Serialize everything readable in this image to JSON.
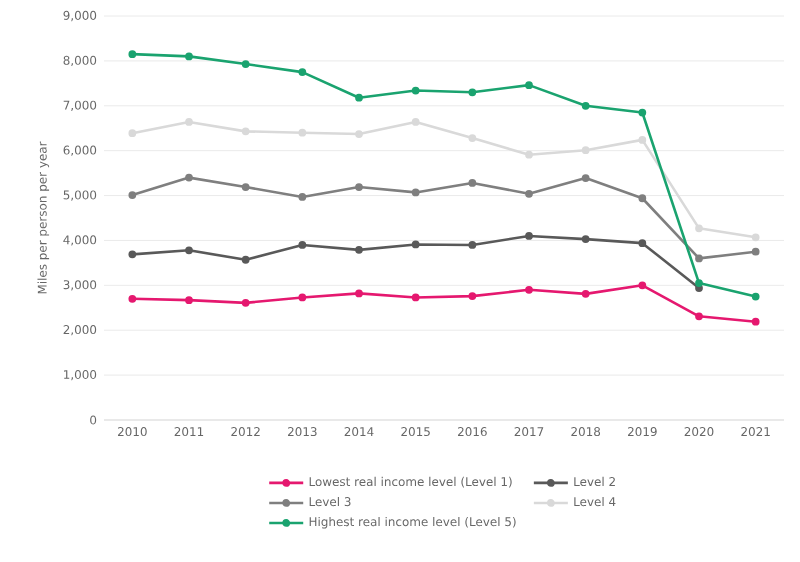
{
  "chart_data": {
    "type": "line",
    "ylabel": "Miles per person per year",
    "categories": [
      "2010",
      "2011",
      "2012",
      "2013",
      "2014",
      "2015",
      "2016",
      "2017",
      "2018",
      "2019",
      "2020",
      "2021"
    ],
    "series": [
      {
        "name": "Lowest real income level (Level 1)",
        "color": "#e5186f",
        "values": [
          2700,
          2670,
          2610,
          2730,
          2820,
          2730,
          2760,
          2900,
          2810,
          3000,
          2310,
          2190
        ]
      },
      {
        "name": "Level 2",
        "color": "#595959",
        "values": [
          3690,
          3780,
          3570,
          3900,
          3790,
          3910,
          3900,
          4100,
          4030,
          3940,
          2940,
          null
        ]
      },
      {
        "name": "Level 3",
        "color": "#7f7f7f",
        "values": [
          5010,
          5400,
          5190,
          4970,
          5190,
          5070,
          5280,
          5040,
          5390,
          4940,
          3600,
          3750
        ]
      },
      {
        "name": "Level 4",
        "color": "#d9d9d9",
        "values": [
          6390,
          6640,
          6430,
          6400,
          6370,
          6640,
          6280,
          5910,
          6010,
          6240,
          4270,
          4070
        ]
      },
      {
        "name": "Highest real income level (Level 5)",
        "color": "#1aa36f",
        "values": [
          8150,
          8100,
          7930,
          7750,
          7180,
          7340,
          7300,
          7460,
          7000,
          6850,
          3050,
          2750
        ]
      }
    ],
    "ylim": [
      0,
      9000
    ],
    "yticks": [
      {
        "value": 0,
        "label": "0"
      },
      {
        "value": 1000,
        "label": "1,000"
      },
      {
        "value": 2000,
        "label": "2,000"
      },
      {
        "value": 3000,
        "label": "3,000"
      },
      {
        "value": 4000,
        "label": "4,000"
      },
      {
        "value": 5000,
        "label": "5,000"
      },
      {
        "value": 6000,
        "label": "6,000"
      },
      {
        "value": 7000,
        "label": "7,000"
      },
      {
        "value": 8000,
        "label": "8,000"
      },
      {
        "value": 9000,
        "label": "9,000"
      }
    ],
    "grid": "y",
    "legend": "bottom",
    "marker": "circle",
    "line_style": "solid"
  }
}
